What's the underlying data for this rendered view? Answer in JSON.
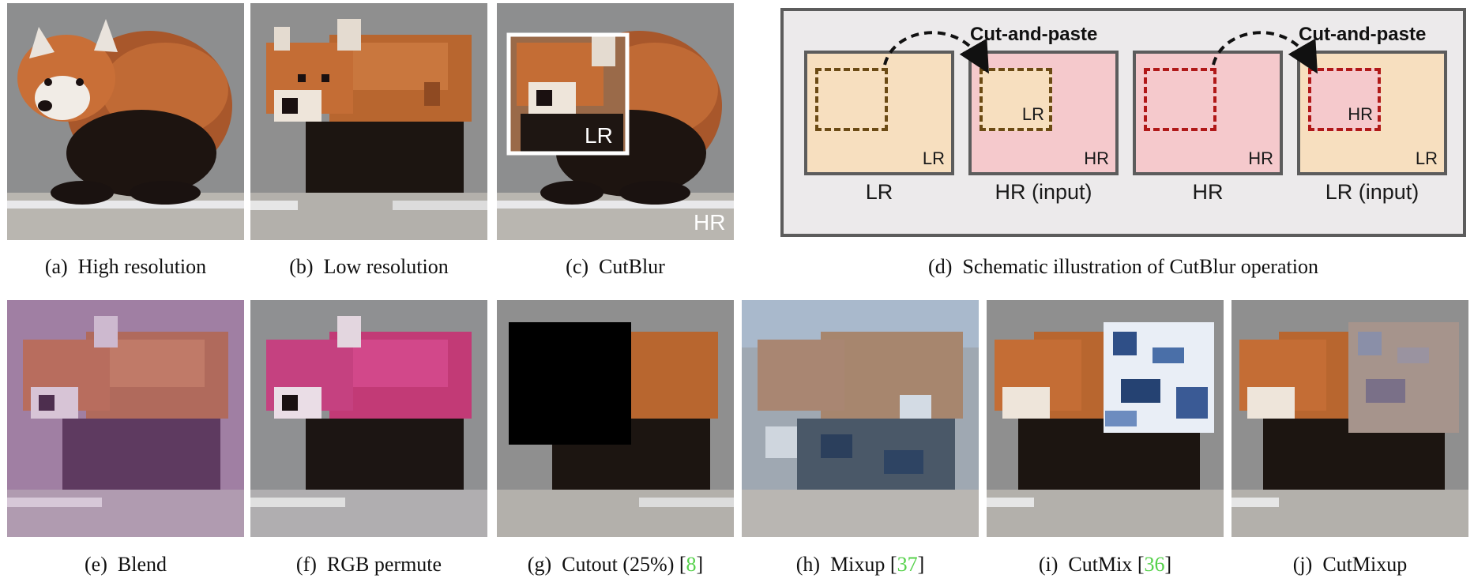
{
  "figure": {
    "row1_captions": [
      {
        "label": "(a)",
        "text": "High resolution"
      },
      {
        "label": "(b)",
        "text": "Low resolution"
      },
      {
        "label": "(c)",
        "text": "CutBlur"
      },
      {
        "label": "(d)",
        "text": "Schematic illustration of CutBlur operation"
      }
    ],
    "row2_captions": [
      {
        "label": "(e)",
        "text": "Blend",
        "cite": ""
      },
      {
        "label": "(f)",
        "text": "RGB permute",
        "cite": ""
      },
      {
        "label": "(g)",
        "text": "Cutout (25%)",
        "cite": "8"
      },
      {
        "label": "(h)",
        "text": "Mixup",
        "cite": "37"
      },
      {
        "label": "(i)",
        "text": "CutMix",
        "cite": "36"
      },
      {
        "label": "(j)",
        "text": "CutMixup",
        "cite": ""
      }
    ],
    "panel_c_tags": {
      "inner": "LR",
      "outer": "HR"
    },
    "schematic": {
      "cut_label": "Cut-and-paste",
      "boxes": [
        {
          "corner": "LR",
          "under": "LR",
          "fill": "#f7dfbf",
          "dash": "#6b4a14",
          "inner_label": ""
        },
        {
          "corner": "HR",
          "under": "HR (input)",
          "fill": "#f5c9cc",
          "dash": "#6b4a14",
          "inner_label": "LR"
        },
        {
          "corner": "HR",
          "under": "HR",
          "fill": "#f5c9cc",
          "dash": "#b01818",
          "inner_label": ""
        },
        {
          "corner": "LR",
          "under": "LR (input)",
          "fill": "#f7dfbf",
          "dash": "#b01818",
          "inner_label": "HR"
        }
      ]
    },
    "colors": {
      "citation": "#55d14a",
      "lr_fill": "#f7dfbf",
      "hr_fill": "#f5c9cc"
    }
  }
}
